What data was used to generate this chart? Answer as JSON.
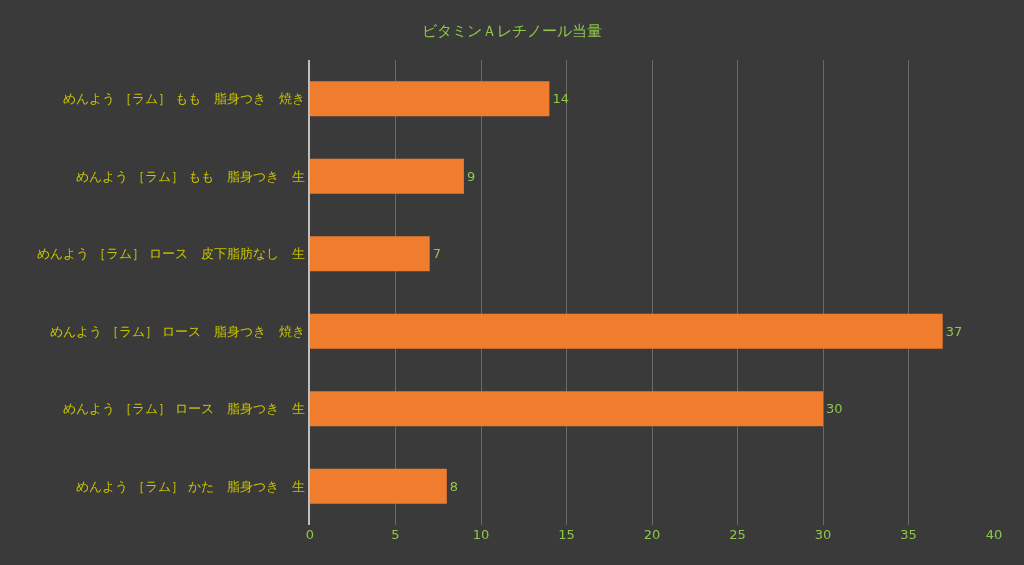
{
  "chart_data": {
    "type": "bar",
    "orientation": "horizontal",
    "title": "ビタミンＡレチノール当量",
    "categories": [
      "めんよう ［ラム］ もも　脂身つき　焼き",
      "めんよう ［ラム］ もも　脂身つき　生",
      "めんよう ［ラム］ ロース　皮下脂肪なし　生",
      "めんよう ［ラム］ ロース　脂身つき　焼き",
      "めんよう ［ラム］ ロース　脂身つき　生",
      "めんよう ［ラム］ かた　脂身つき　生"
    ],
    "values": [
      14,
      9,
      7,
      37,
      30,
      8
    ],
    "color": "#f07c2e",
    "xlim": [
      0,
      40
    ],
    "xticks": [
      0,
      5,
      10,
      15,
      20,
      25,
      30,
      35,
      40
    ],
    "grid": "x",
    "data_labels": true
  }
}
